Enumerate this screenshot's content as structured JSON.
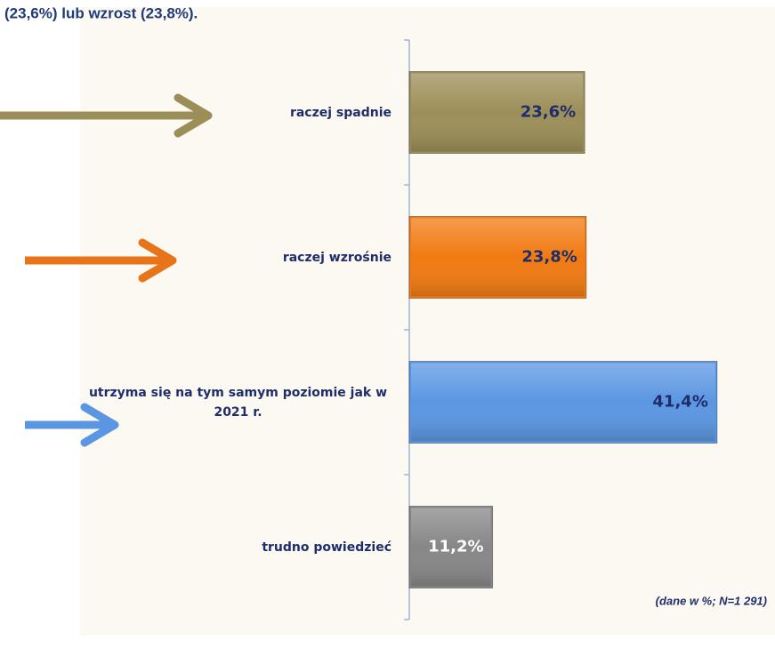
{
  "chart_data": {
    "type": "barh",
    "title": "(23,6%) lub wzrost (23,8%).",
    "categories": [
      "raczej spadnie",
      "raczej wzrośnie",
      "utrzyma się na tym samym poziomie jak w 2021 r.",
      "trudno powiedzieć"
    ],
    "values": [
      23.6,
      23.8,
      41.4,
      11.2
    ],
    "value_labels": [
      "23,6%",
      "23,8%",
      "41,4%",
      "11,2%"
    ],
    "colors": [
      "#9c8e58",
      "#f17a12",
      "#5b96e2",
      "#878787"
    ],
    "value_label_colors": [
      "#1f2d6b",
      "#1f2d6b",
      "#1f2d6b",
      "#ffffff"
    ],
    "xlim": [
      0,
      48
    ],
    "note": "(dane w %; N=1 291)"
  }
}
